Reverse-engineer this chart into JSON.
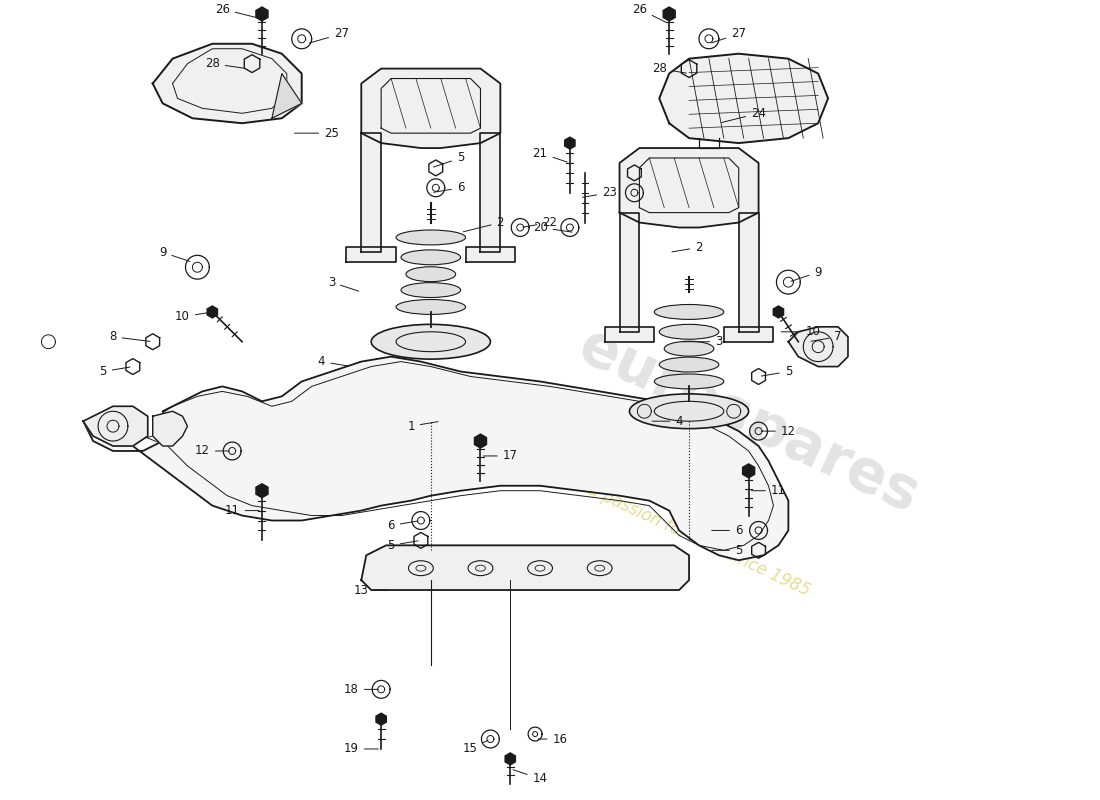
{
  "bg_color": "#ffffff",
  "line_color": "#1a1a1a",
  "watermark1": "eurospares",
  "watermark2": "a passion for cars since 1985",
  "figsize": [
    11.0,
    8.0
  ],
  "dpi": 100,
  "xlim": [
    0,
    110
  ],
  "ylim": [
    0,
    80
  ],
  "labels": [
    [
      "26",
      26,
      78.5,
      22,
      79.5,
      "right"
    ],
    [
      "27",
      30.5,
      76,
      34,
      77,
      "left"
    ],
    [
      "28",
      24.5,
      73.5,
      21,
      74,
      "right"
    ],
    [
      "25",
      29,
      67,
      33,
      67,
      "left"
    ],
    [
      "5",
      43,
      63.5,
      46,
      64.5,
      "left"
    ],
    [
      "6",
      43,
      61,
      46,
      61.5,
      "left"
    ],
    [
      "2",
      46,
      57,
      50,
      58,
      "left"
    ],
    [
      "9",
      19,
      54,
      16,
      55,
      "right"
    ],
    [
      "10",
      21,
      49,
      18,
      48.5,
      "right"
    ],
    [
      "5",
      13,
      43.5,
      10,
      43,
      "right"
    ],
    [
      "8",
      15,
      46,
      11,
      46.5,
      "right"
    ],
    [
      "3",
      36,
      51,
      33,
      52,
      "right"
    ],
    [
      "4",
      35,
      43.5,
      32,
      44,
      "right"
    ],
    [
      "22",
      52,
      57.5,
      55,
      58,
      "left"
    ],
    [
      "1",
      44,
      38,
      41,
      37.5,
      "right"
    ],
    [
      "17",
      48,
      34.5,
      51,
      34.5,
      "left"
    ],
    [
      "6",
      42,
      28,
      39,
      27.5,
      "right"
    ],
    [
      "5",
      42,
      26,
      39,
      25.5,
      "right"
    ],
    [
      "12",
      23,
      35,
      20,
      35,
      "right"
    ],
    [
      "11",
      26,
      29,
      23,
      29,
      "right"
    ],
    [
      "13",
      39,
      21,
      36,
      21,
      "right"
    ],
    [
      "18",
      38,
      11,
      35,
      11,
      "right"
    ],
    [
      "19",
      38,
      5,
      35,
      5,
      "right"
    ],
    [
      "15",
      49,
      6,
      47,
      5,
      "right"
    ],
    [
      "16",
      53.5,
      6,
      56,
      6,
      "left"
    ],
    [
      "14",
      51,
      3,
      54,
      2,
      "left"
    ],
    [
      "21",
      57,
      64,
      54,
      65,
      "right"
    ],
    [
      "20",
      57.5,
      57,
      54,
      57.5,
      "right"
    ],
    [
      "23",
      58,
      60.5,
      61,
      61,
      "left"
    ],
    [
      "2",
      67,
      55,
      70,
      55.5,
      "left"
    ],
    [
      "3",
      68,
      46,
      72,
      46,
      "left"
    ],
    [
      "4",
      65,
      38,
      68,
      38,
      "left"
    ],
    [
      "5",
      76,
      42.5,
      79,
      43,
      "left"
    ],
    [
      "7",
      81,
      46,
      84,
      46.5,
      "left"
    ],
    [
      "9",
      79,
      52,
      82,
      53,
      "left"
    ],
    [
      "10",
      78,
      47,
      81.5,
      47,
      "left"
    ],
    [
      "12",
      76,
      37,
      79,
      37,
      "left"
    ],
    [
      "11",
      75,
      31,
      78,
      31,
      "left"
    ],
    [
      "6",
      71,
      27,
      74,
      27,
      "left"
    ],
    [
      "5",
      71,
      25,
      74,
      25,
      "left"
    ],
    [
      "24",
      72,
      68,
      76,
      69,
      "left"
    ],
    [
      "26",
      67,
      78,
      64,
      79.5,
      "right"
    ],
    [
      "27",
      71,
      76,
      74,
      77,
      "left"
    ],
    [
      "28",
      69,
      73,
      66,
      73.5,
      "right"
    ]
  ]
}
